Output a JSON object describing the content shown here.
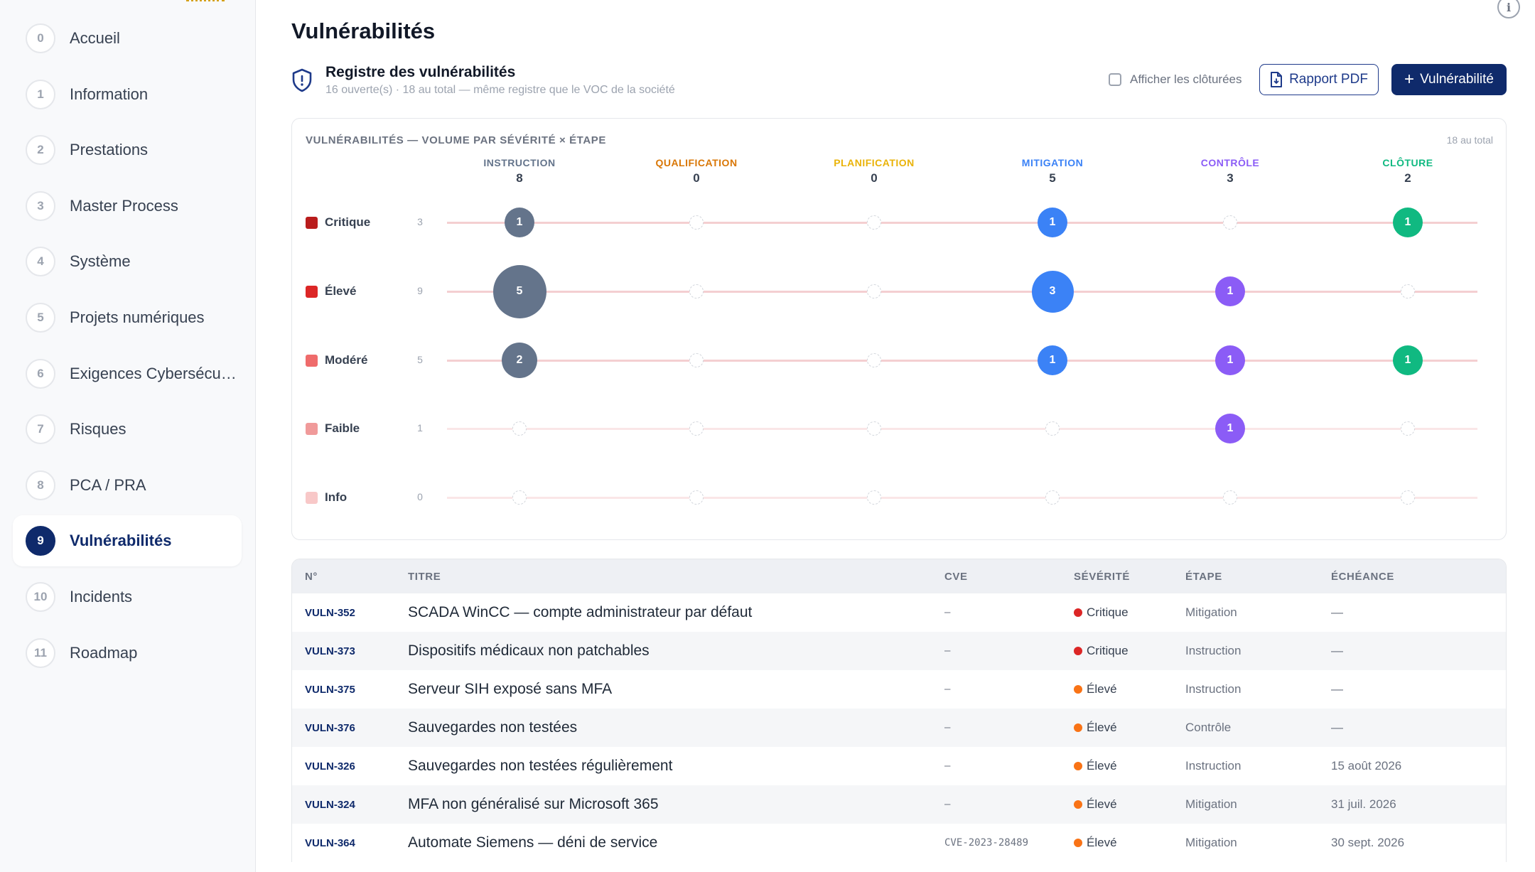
{
  "sidebar": {
    "items": [
      {
        "num": "0",
        "label": "Accueil"
      },
      {
        "num": "1",
        "label": "Information"
      },
      {
        "num": "2",
        "label": "Prestations"
      },
      {
        "num": "3",
        "label": "Master Process"
      },
      {
        "num": "4",
        "label": "Système"
      },
      {
        "num": "5",
        "label": "Projets numériques"
      },
      {
        "num": "6",
        "label": "Exigences Cybersécurité"
      },
      {
        "num": "7",
        "label": "Risques"
      },
      {
        "num": "8",
        "label": "PCA / PRA"
      },
      {
        "num": "9",
        "label": "Vulnérabilités",
        "active": true
      },
      {
        "num": "10",
        "label": "Incidents"
      },
      {
        "num": "11",
        "label": "Roadmap"
      }
    ]
  },
  "page": {
    "title": "Vulnérabilités",
    "info_icon": "info-icon",
    "info_glyph": "i"
  },
  "registry": {
    "title": "Registre des vulnérabilités",
    "subtitle": "16 ouverte(s) · 18 au total — même registre que le VOC de la société",
    "show_closed_label": "Afficher les clôturées",
    "pdf_button": "Rapport PDF",
    "add_button": "Vulnérabilité",
    "add_glyph": "+"
  },
  "chart_data": {
    "type": "bubble-matrix",
    "title": "VULNÉRABILITÉS — VOLUME PAR SÉVÉRITÉ × ÉTAPE",
    "total_label": "18 au total",
    "stages": [
      {
        "name": "INSTRUCTION",
        "count": 8,
        "color": "#64748b"
      },
      {
        "name": "QUALIFICATION",
        "count": 0,
        "color": "#d97706"
      },
      {
        "name": "PLANIFICATION",
        "count": 0,
        "color": "#eab308"
      },
      {
        "name": "MITIGATION",
        "count": 5,
        "color": "#3b82f6"
      },
      {
        "name": "CONTRÔLE",
        "count": 3,
        "color": "#8b5cf6"
      },
      {
        "name": "CLÔTURE",
        "count": 2,
        "color": "#10b981"
      }
    ],
    "severities": [
      {
        "name": "Critique",
        "count": 3,
        "color": "#b91c1c",
        "values": [
          1,
          0,
          0,
          1,
          0,
          1
        ]
      },
      {
        "name": "Élevé",
        "count": 9,
        "color": "#dc2626",
        "values": [
          5,
          0,
          0,
          3,
          1,
          0
        ]
      },
      {
        "name": "Modéré",
        "count": 5,
        "color": "#ef6b6b",
        "values": [
          2,
          0,
          0,
          1,
          1,
          1
        ]
      },
      {
        "name": "Faible",
        "count": 1,
        "color": "#f09a9a",
        "values": [
          0,
          0,
          0,
          0,
          1,
          0
        ]
      },
      {
        "name": "Info",
        "count": 0,
        "color": "#f8c8c8",
        "values": [
          0,
          0,
          0,
          0,
          0,
          0
        ]
      }
    ]
  },
  "table": {
    "headers": {
      "id": "N°",
      "title": "TITRE",
      "cve": "CVE",
      "severity": "SÉVÉRITÉ",
      "step": "ÉTAPE",
      "due": "ÉCHÉANCE"
    },
    "severity_colors": {
      "Critique": "#dc2626",
      "Élevé": "#f97316"
    },
    "rows": [
      {
        "id": "VULN-352",
        "title": "SCADA WinCC — compte administrateur par défaut",
        "cve": "–",
        "severity": "Critique",
        "step": "Mitigation",
        "due": "—"
      },
      {
        "id": "VULN-373",
        "title": "Dispositifs médicaux non patchables",
        "cve": "–",
        "severity": "Critique",
        "step": "Instruction",
        "due": "—"
      },
      {
        "id": "VULN-375",
        "title": "Serveur SIH exposé sans MFA",
        "cve": "–",
        "severity": "Élevé",
        "step": "Instruction",
        "due": "—"
      },
      {
        "id": "VULN-376",
        "title": "Sauvegardes non testées",
        "cve": "–",
        "severity": "Élevé",
        "step": "Contrôle",
        "due": "—"
      },
      {
        "id": "VULN-326",
        "title": "Sauvegardes non testées régulièrement",
        "cve": "–",
        "severity": "Élevé",
        "step": "Instruction",
        "due": "15 août 2026"
      },
      {
        "id": "VULN-324",
        "title": "MFA non généralisé sur Microsoft 365",
        "cve": "–",
        "severity": "Élevé",
        "step": "Mitigation",
        "due": "31 juil. 2026"
      },
      {
        "id": "VULN-364",
        "title": "Automate Siemens — déni de service",
        "cve": "CVE-2023-28489",
        "severity": "Élevé",
        "step": "Mitigation",
        "due": "30 sept. 2026"
      }
    ]
  }
}
